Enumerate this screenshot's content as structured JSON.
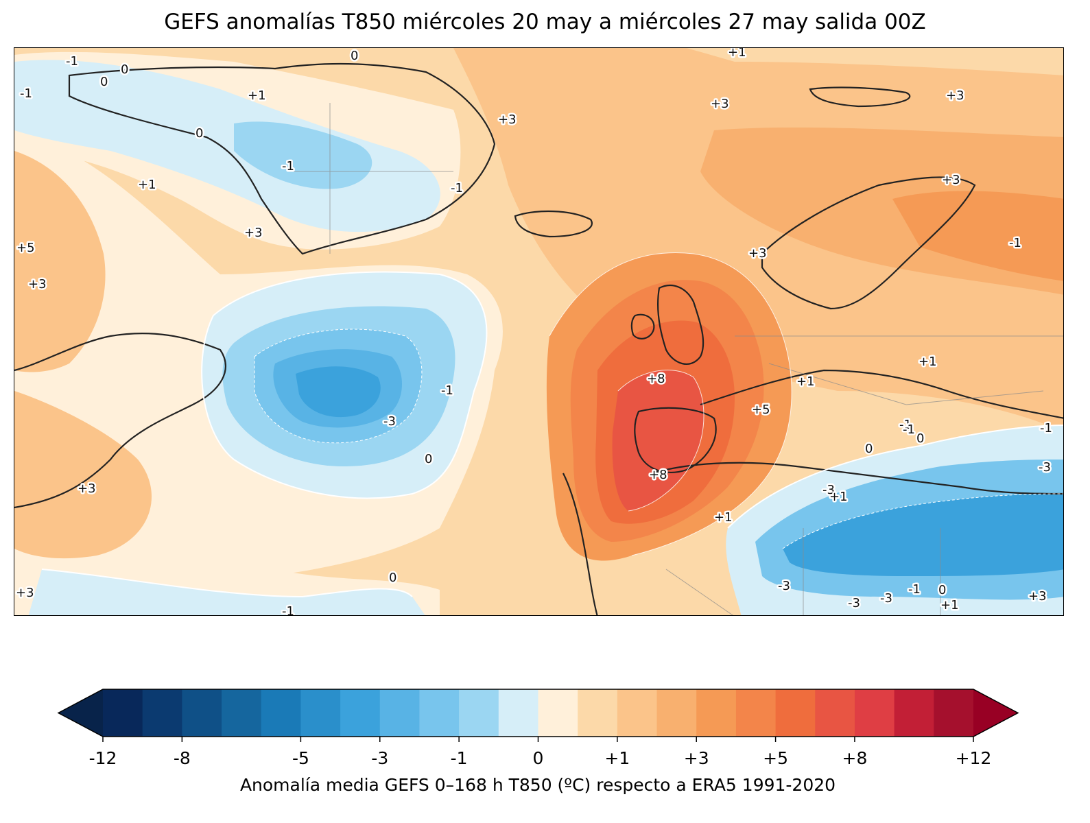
{
  "title": "GEFS anomalías T850 miércoles 20 may a miércoles 27 may salida 00Z",
  "colorbar": {
    "label": "Anomalía media GEFS 0–168 h T850 (ºC) respecto a ERA5 1991-2020",
    "ticks": [
      "-12",
      "-8",
      "-5",
      "-3",
      "-1",
      "0",
      "+1",
      "+3",
      "+5",
      "+8",
      "+12"
    ],
    "under_color": "#08234a",
    "over_color": "#980024",
    "colors": [
      "#08285a",
      "#0b3a70",
      "#0f5087",
      "#15669e",
      "#1a7ab7",
      "#2a8fcb",
      "#3ba2dc",
      "#58b3e5",
      "#78c5ed",
      "#9bd6f2",
      "#d6eef8",
      "#fff0da",
      "#fcd9a9",
      "#fbc48a",
      "#f8b06f",
      "#f59a55",
      "#f3854a",
      "#ef6d3d",
      "#e85543",
      "#df3e44",
      "#c21f36",
      "#a5102d"
    ]
  },
  "contour_labels": [
    "0",
    "+1",
    "-1",
    "0",
    "0",
    "-1",
    "+1",
    "0",
    "+3",
    "+1",
    "-1",
    "-1",
    "+3",
    "+5",
    "+3",
    "+3",
    "-1",
    "0",
    "-3",
    "-1",
    "0",
    "0",
    "-1",
    "+3",
    "+3",
    "+3",
    "+8",
    "+5",
    "+1",
    "+1",
    "+1",
    "+8",
    "-1",
    "0",
    "-1",
    "-3",
    "-3",
    "-3",
    "-3",
    "-3",
    "-1",
    "0",
    "+1",
    "+3",
    "+3",
    "+3",
    "+1",
    "-1"
  ],
  "map_colors": {
    "ocean_base": "#fde6c8",
    "coast": "#222222",
    "borders": "#8a8a8a"
  }
}
